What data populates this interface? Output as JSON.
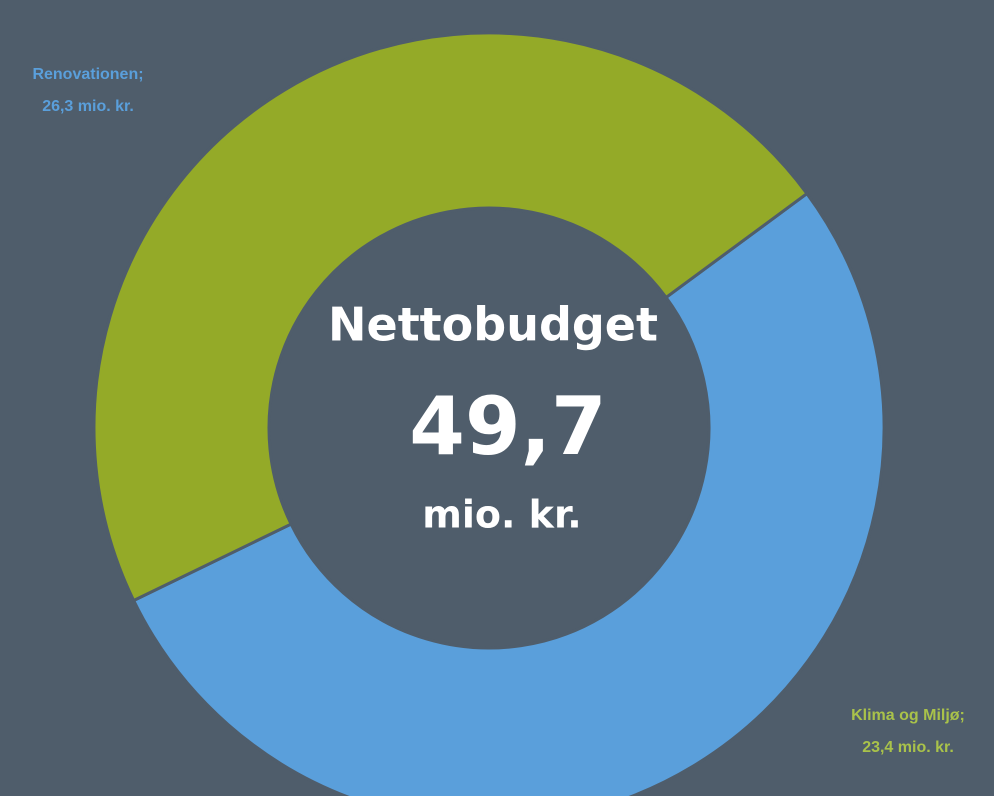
{
  "chart_data": {
    "type": "donut",
    "categories": [
      "Renovationen;",
      "Klima og Miljø;"
    ],
    "values": [
      26.3,
      23.4
    ],
    "value_labels": [
      "26,3 mio. kr.",
      "23,4 mio. kr."
    ],
    "colors": [
      "#5a9fdb",
      "#94aa28"
    ],
    "center_label": {
      "title": "Nettobudget",
      "value": "49,7",
      "unit": "mio. kr."
    }
  }
}
